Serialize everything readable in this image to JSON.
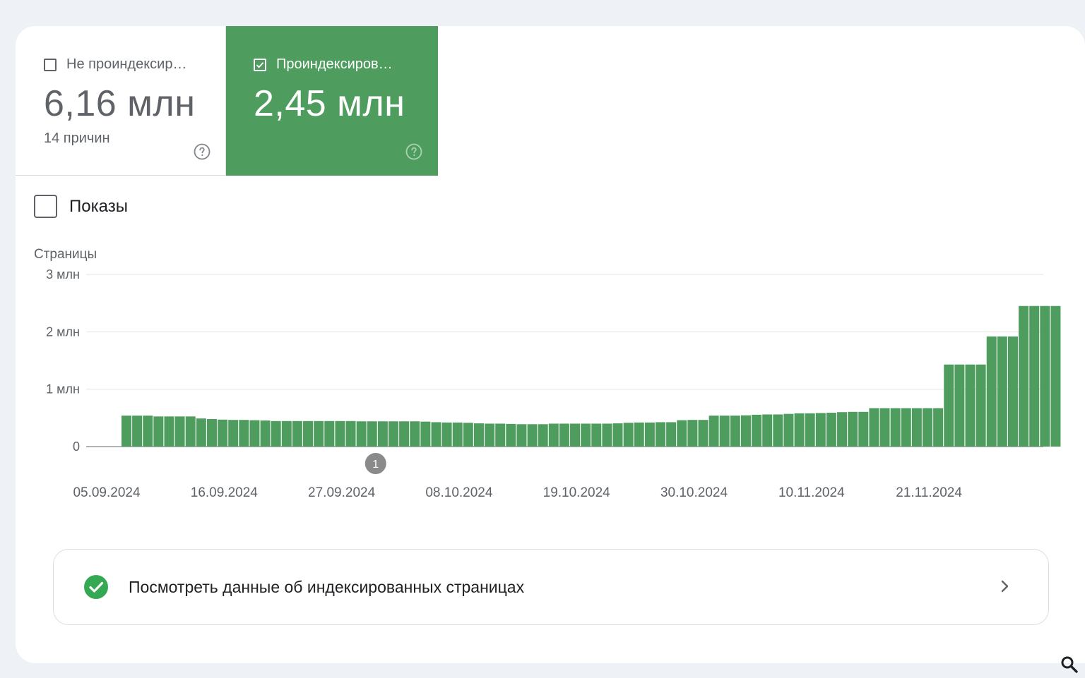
{
  "tiles": {
    "not_indexed": {
      "label": "Не проиндексир…",
      "value": "6,16 млн",
      "sub": "14 причин",
      "checked": false,
      "help_icon": "help-circle-icon"
    },
    "indexed": {
      "label": "Проиндексиров…",
      "value": "2,45 млн",
      "checked": true,
      "help_icon": "help-circle-icon",
      "color": "#4f9d5e"
    }
  },
  "impressions": {
    "label": "Показы",
    "checked": false
  },
  "chart_data": {
    "type": "bar",
    "ylabel": "Страницы",
    "ylim": [
      0,
      3000000
    ],
    "yticks": [
      {
        "value": 0,
        "label": "0"
      },
      {
        "value": 1000000,
        "label": "1 млн"
      },
      {
        "value": 2000000,
        "label": "2 млн"
      },
      {
        "value": 3000000,
        "label": "3 млн"
      }
    ],
    "xtick_labels": [
      "05.09.2024",
      "16.09.2024",
      "27.09.2024",
      "08.10.2024",
      "19.10.2024",
      "30.10.2024",
      "10.11.2024",
      "21.11.2024"
    ],
    "annotation": {
      "label": "1",
      "date": "27.09.2024"
    },
    "color": "#4f9d5e",
    "series": [
      {
        "values": [
          540000,
          540000,
          540000,
          525000,
          525000,
          525000,
          525000,
          490000,
          480000,
          470000,
          465000,
          465000,
          460000,
          455000,
          445000,
          445000,
          445000,
          445000,
          445000,
          445000,
          445000,
          445000,
          440000,
          440000,
          440000,
          440000,
          440000,
          440000,
          435000,
          425000,
          420000,
          420000,
          415000,
          405000,
          400000,
          400000,
          395000,
          390000,
          390000,
          390000,
          400000,
          400000,
          400000,
          400000,
          400000,
          400000,
          405000,
          415000,
          420000,
          420000,
          425000,
          425000,
          460000,
          465000,
          465000,
          540000,
          540000,
          540000,
          545000,
          555000,
          560000,
          560000,
          570000,
          580000,
          580000,
          585000,
          590000,
          600000,
          605000,
          605000,
          670000,
          670000,
          670000,
          670000,
          670000,
          670000,
          670000,
          1430000,
          1430000,
          1430000,
          1430000,
          1920000,
          1920000,
          1920000,
          2450000,
          2450000,
          2450000,
          2450000
        ]
      }
    ]
  },
  "link_row": {
    "label": "Посмотреть данные об индексированных страницах",
    "status_icon": "check-circle-icon",
    "arrow_icon": "chevron-right-icon",
    "status_color": "#34a853"
  }
}
